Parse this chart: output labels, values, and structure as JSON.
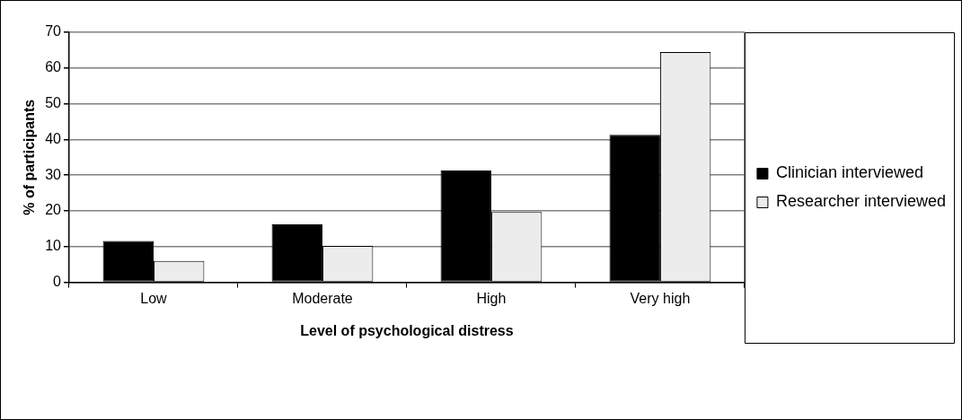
{
  "chart_data": {
    "type": "bar",
    "xlabel": "Level of psychological distress",
    "ylabel": "% of participants",
    "categories": [
      "Low",
      "Moderate",
      "High",
      "Very high"
    ],
    "series": [
      {
        "name": "Clinician interviewed",
        "color": "#000000",
        "values": [
          11.6,
          16.2,
          31.3,
          41.3
        ]
      },
      {
        "name": "Researcher interviewed",
        "color": "#ececec",
        "values": [
          6.0,
          10.2,
          19.7,
          64.5
        ]
      }
    ],
    "ylim": [
      0,
      70
    ],
    "yticks": [
      0,
      10,
      20,
      30,
      40,
      50,
      60,
      70
    ],
    "grid": "y",
    "legend": "right"
  }
}
